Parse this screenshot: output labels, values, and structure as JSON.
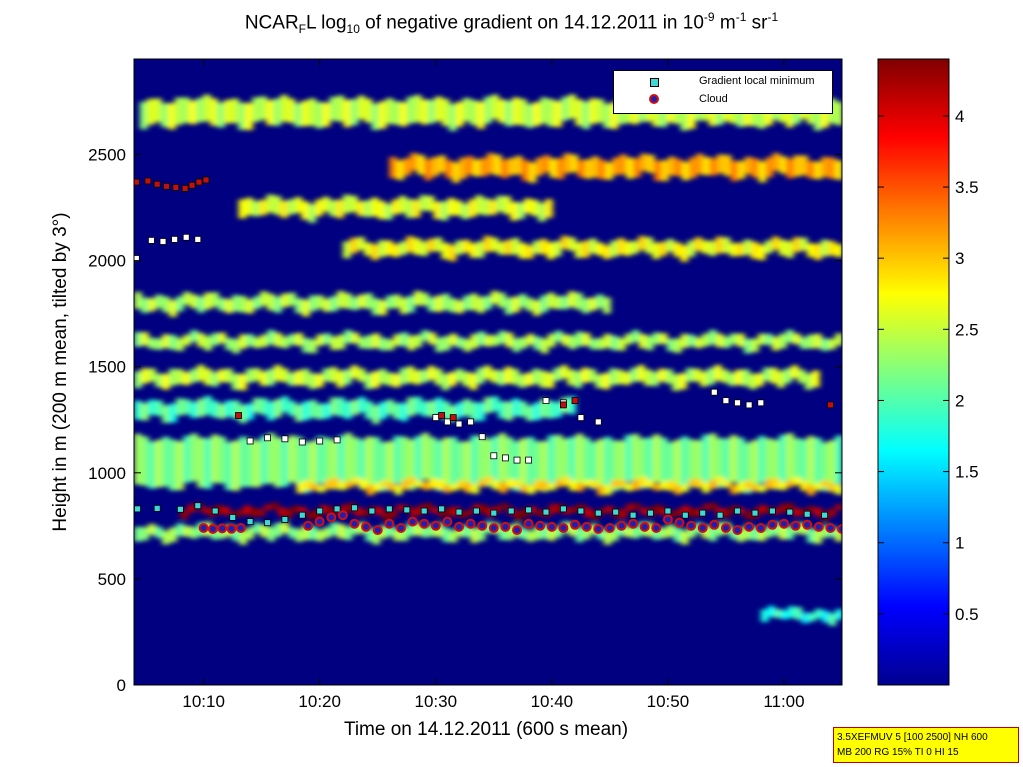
{
  "title": {
    "prefix": "NCAR",
    "sub1": "F",
    "part2": "L log",
    "sub2": "10",
    "part3": " of negative gradient on 14.12.2011 in 10",
    "sup1": "-9",
    "part4": " m",
    "sup2": "-1",
    "part5": " sr",
    "sup3": "-1"
  },
  "chart_data": {
    "type": "heatmap",
    "title": "NCAR_F L log10 of negative gradient on 14.12.2011 in 10^-9 m^-1 sr^-1",
    "xlabel": "Time on 14.12.2011 (600 s mean)",
    "ylabel": "Height in m (200 m mean, tilted by 3°)",
    "xlim": [
      4.0,
      65.0
    ],
    "ylim": [
      0,
      2950
    ],
    "x_tick_values": [
      10,
      20,
      30,
      40,
      50,
      60
    ],
    "x_tick_labels": [
      "10:10",
      "10:20",
      "10:30",
      "10:40",
      "10:50",
      "11:00"
    ],
    "y_ticks": [
      0,
      500,
      1000,
      1500,
      2000,
      2500
    ],
    "colorbar": {
      "range": [
        0.0,
        4.4
      ],
      "ticks": [
        0.5,
        1,
        1.5,
        2,
        2.5,
        3,
        3.5,
        4
      ],
      "tick_labels": [
        "0.5",
        "1",
        "1.5",
        "2",
        "2.5",
        "3",
        "3.5",
        "4"
      ],
      "colormap": "jet"
    },
    "background_value": 0.0,
    "layers": [
      {
        "name": "upper aerosol 2700",
        "t0": 4.5,
        "t1": 65,
        "h": 2700,
        "thick": 120,
        "value": 2.5
      },
      {
        "name": "upper aerosol 2440",
        "t0": 26,
        "t1": 65,
        "h": 2440,
        "thick": 90,
        "value": 3.1
      },
      {
        "name": "layer 2250",
        "t0": 13,
        "t1": 40,
        "h": 2250,
        "thick": 80,
        "value": 2.6
      },
      {
        "name": "layer 2050",
        "t0": 22,
        "t1": 65,
        "h": 2060,
        "thick": 70,
        "value": 2.7
      },
      {
        "name": "layer 1800",
        "t0": 4,
        "t1": 45,
        "h": 1800,
        "thick": 70,
        "value": 2.4
      },
      {
        "name": "layer 1600",
        "t0": 4,
        "t1": 65,
        "h": 1620,
        "thick": 60,
        "value": 2.4
      },
      {
        "name": "layer 1450",
        "t0": 4,
        "t1": 63,
        "h": 1450,
        "thick": 70,
        "value": 2.5
      },
      {
        "name": "layer 1300",
        "t0": 4,
        "t1": 42,
        "h": 1300,
        "thick": 80,
        "value": 2.0
      },
      {
        "name": "boundary layer",
        "t0": 4,
        "t1": 65,
        "h": 1050,
        "thick": 230,
        "value": 2.2
      },
      {
        "name": "cloud top gradient",
        "t0": 18,
        "t1": 65,
        "h": 940,
        "thick": 40,
        "value": 2.9
      },
      {
        "name": "cloud base",
        "t0": 8,
        "t1": 65,
        "h": 820,
        "thick": 35,
        "value": 4.3
      },
      {
        "name": "below cloud",
        "t0": 4,
        "t1": 65,
        "h": 720,
        "thick": 60,
        "value": 2.3
      },
      {
        "name": "surface ramp",
        "t0": 58,
        "t1": 65,
        "h": 330,
        "thick": 50,
        "value": 1.8
      }
    ],
    "series": [
      {
        "name": "Gradient local minimum",
        "marker": "square",
        "x": [
          4.3,
          6,
          8,
          9.5,
          11,
          12.5,
          14,
          15.5,
          17,
          18.5,
          20,
          21.5,
          23,
          24.5,
          26,
          27.5,
          29,
          30.5,
          32,
          33.5,
          35,
          36.5,
          38,
          39.5,
          41,
          42.5,
          44,
          45.5,
          47,
          48.5,
          50,
          51.5,
          53,
          54.5,
          56,
          57.5,
          59,
          60.5,
          62,
          63.5
        ],
        "y": [
          830,
          832,
          828,
          845,
          820,
          790,
          770,
          765,
          780,
          800,
          820,
          830,
          835,
          820,
          830,
          825,
          820,
          830,
          815,
          820,
          810,
          820,
          825,
          815,
          830,
          820,
          810,
          815,
          800,
          810,
          820,
          800,
          810,
          800,
          820,
          810,
          820,
          815,
          805,
          800
        ]
      },
      {
        "name": "Cloud",
        "marker": "circle",
        "x": [
          10,
          10.8,
          11.6,
          12.4,
          13.2,
          19,
          20,
          21,
          22,
          23,
          24,
          25,
          26,
          27,
          28,
          29,
          30,
          31,
          32,
          33,
          34,
          35,
          36,
          37,
          38,
          39,
          40,
          41,
          42,
          43,
          44,
          45,
          46,
          47,
          48,
          49,
          50,
          51,
          52,
          53,
          54,
          55,
          56,
          57,
          58,
          59,
          60,
          61,
          62,
          63,
          64,
          65
        ],
        "y": [
          740,
          735,
          738,
          736,
          740,
          750,
          770,
          790,
          800,
          760,
          745,
          730,
          760,
          740,
          770,
          760,
          750,
          770,
          745,
          760,
          750,
          740,
          745,
          730,
          760,
          750,
          745,
          740,
          755,
          745,
          735,
          740,
          750,
          760,
          745,
          740,
          780,
          765,
          750,
          740,
          755,
          740,
          730,
          745,
          740,
          755,
          760,
          750,
          755,
          745,
          740,
          735
        ]
      },
      {
        "name": "Upper local minima (white)",
        "marker": "square-white",
        "x": [
          4.2,
          5.5,
          6.5,
          7.5,
          8.5,
          9.5,
          14,
          15.5,
          17,
          18.5,
          20,
          21.5,
          30,
          31,
          32,
          33,
          34,
          35,
          36,
          37,
          38,
          39.5,
          41,
          42.5,
          44,
          54,
          55,
          56,
          57,
          58
        ],
        "y": [
          2010,
          2095,
          2090,
          2100,
          2110,
          2100,
          1150,
          1165,
          1160,
          1145,
          1150,
          1155,
          1260,
          1240,
          1230,
          1240,
          1170,
          1080,
          1070,
          1060,
          1060,
          1340,
          1330,
          1260,
          1240,
          1380,
          1340,
          1330,
          1320,
          1330
        ]
      },
      {
        "name": "Upper local minima (red)",
        "marker": "square-red",
        "x": [
          4.2,
          5.2,
          6,
          6.8,
          7.6,
          8.4,
          9,
          9.6,
          10.2,
          13,
          30.5,
          31.5,
          41,
          42,
          64
        ],
        "y": [
          2370,
          2375,
          2360,
          2350,
          2345,
          2340,
          2355,
          2370,
          2380,
          1270,
          1270,
          1260,
          1320,
          1340,
          1320
        ]
      }
    ],
    "legend": {
      "placement": "top-right",
      "entries": [
        "Gradient local minimum",
        "Cloud"
      ]
    },
    "annotations": [
      "3.5XEFMUV 5 [100 2500] NH 600",
      "MB 200 RG 15% TI 0 HI 15"
    ]
  }
}
